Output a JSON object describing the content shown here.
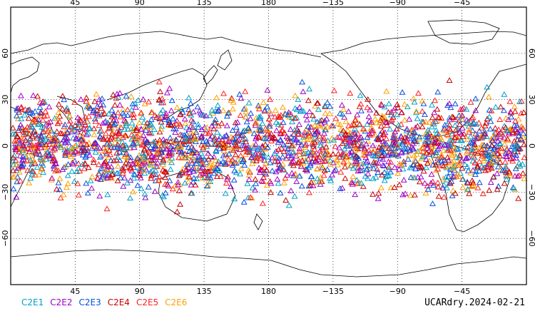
{
  "map": {
    "top_lon_labels": [
      "45",
      "90",
      "135",
      "180",
      "−135",
      "−90",
      "−45"
    ],
    "bottom_lon_labels": [
      "45",
      "90",
      "135",
      "180",
      "−135",
      "−90",
      "−45"
    ],
    "left_lat_labels": [
      "60",
      "30",
      "0",
      "−30",
      "−60"
    ],
    "right_lat_labels": [
      "60",
      "30",
      "0",
      "−30",
      "−60"
    ],
    "lon_ticks": [
      45,
      90,
      135,
      180,
      -135,
      -90,
      -45
    ],
    "lat_ticks": [
      60,
      30,
      0,
      -30,
      -60
    ],
    "lon_range": [
      0,
      360
    ],
    "lat_range": [
      -90,
      90
    ],
    "obs_lat_range": [
      -45,
      45
    ],
    "coastline_color": "#000000",
    "grid_style": "dotted"
  },
  "legend": {
    "items": [
      {
        "label": "C2E1",
        "color": "#00a0c8"
      },
      {
        "label": "C2E2",
        "color": "#a000c8"
      },
      {
        "label": "C2E3",
        "color": "#0050e0"
      },
      {
        "label": "C2E4",
        "color": "#c80000"
      },
      {
        "label": "C2E5",
        "color": "#ff2020"
      },
      {
        "label": "C2E6",
        "color": "#ffa000"
      }
    ]
  },
  "caption": "UCARdry.2024-02-21"
}
